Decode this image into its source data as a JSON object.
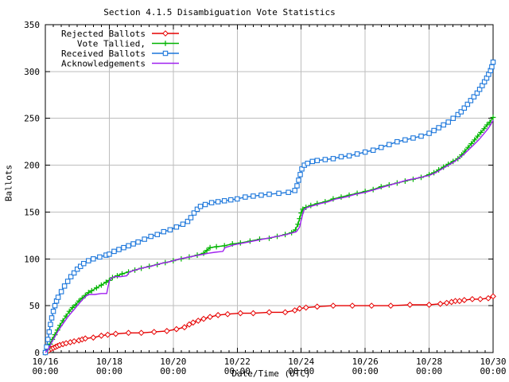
{
  "chart_data": {
    "type": "line",
    "title": "Section 4.1.5 Disambiguation Vote Statistics",
    "xlabel": "Date/Time (UTC)",
    "ylabel": "Ballots",
    "x_unit_note": "days since 10/16 00:00 UTC",
    "xlim": [
      0,
      14
    ],
    "ylim": [
      0,
      350
    ],
    "grid": true,
    "legend_position": "top-left",
    "x_ticks": [
      {
        "day": 0,
        "date": "10/16",
        "time": "00:00"
      },
      {
        "day": 2,
        "date": "10/18",
        "time": "00:00"
      },
      {
        "day": 4,
        "date": "10/20",
        "time": "00:00"
      },
      {
        "day": 6,
        "date": "10/22",
        "time": "00:00"
      },
      {
        "day": 8,
        "date": "10/24",
        "time": "00:00"
      },
      {
        "day": 10,
        "date": "10/26",
        "time": "00:00"
      },
      {
        "day": 12,
        "date": "10/28",
        "time": "00:00"
      },
      {
        "day": 14,
        "date": "10/30",
        "time": "00:00"
      }
    ],
    "y_ticks": [
      0,
      50,
      100,
      150,
      200,
      250,
      300,
      350
    ],
    "x_minor_interval": 0.25,
    "grid_color": "#bdbdbd",
    "series": [
      {
        "name": "Rejected Ballots",
        "color": "#e60000",
        "marker": "diamond",
        "points": [
          [
            0,
            0
          ],
          [
            0.1,
            2
          ],
          [
            0.18,
            4
          ],
          [
            0.25,
            5
          ],
          [
            0.32,
            6
          ],
          [
            0.38,
            7
          ],
          [
            0.45,
            8
          ],
          [
            0.55,
            9
          ],
          [
            0.65,
            10
          ],
          [
            0.78,
            11
          ],
          [
            0.9,
            12
          ],
          [
            1.05,
            13
          ],
          [
            1.15,
            14
          ],
          [
            1.25,
            15
          ],
          [
            1.5,
            16
          ],
          [
            1.75,
            18
          ],
          [
            1.95,
            19
          ],
          [
            2.2,
            20
          ],
          [
            2.6,
            21
          ],
          [
            3,
            21
          ],
          [
            3.4,
            22
          ],
          [
            3.8,
            23
          ],
          [
            4.1,
            25
          ],
          [
            4.35,
            27
          ],
          [
            4.5,
            30
          ],
          [
            4.62,
            32
          ],
          [
            4.78,
            34
          ],
          [
            4.95,
            36
          ],
          [
            5.15,
            38
          ],
          [
            5.4,
            40
          ],
          [
            5.7,
            41
          ],
          [
            6.1,
            42
          ],
          [
            6.5,
            42
          ],
          [
            7,
            43
          ],
          [
            7.5,
            43
          ],
          [
            7.8,
            45
          ],
          [
            7.95,
            47
          ],
          [
            8.15,
            48
          ],
          [
            8.5,
            49
          ],
          [
            9,
            50
          ],
          [
            9.6,
            50
          ],
          [
            10.2,
            50
          ],
          [
            10.8,
            50
          ],
          [
            11.4,
            51
          ],
          [
            12,
            51
          ],
          [
            12.35,
            52
          ],
          [
            12.55,
            53
          ],
          [
            12.7,
            54
          ],
          [
            12.82,
            55
          ],
          [
            12.95,
            55
          ],
          [
            13.1,
            56
          ],
          [
            13.35,
            57
          ],
          [
            13.6,
            57
          ],
          [
            13.85,
            58
          ],
          [
            14,
            60
          ]
        ]
      },
      {
        "name": "Vote Tallied,",
        "color": "#00b400",
        "marker": "plus",
        "points": [
          [
            0,
            0
          ],
          [
            0.08,
            4
          ],
          [
            0.15,
            9
          ],
          [
            0.22,
            14
          ],
          [
            0.3,
            19
          ],
          [
            0.38,
            24
          ],
          [
            0.46,
            29
          ],
          [
            0.55,
            34
          ],
          [
            0.65,
            39
          ],
          [
            0.75,
            44
          ],
          [
            0.85,
            48
          ],
          [
            0.95,
            51
          ],
          [
            1.05,
            55
          ],
          [
            1.15,
            58
          ],
          [
            1.25,
            61
          ],
          [
            1.35,
            64
          ],
          [
            1.45,
            66
          ],
          [
            1.6,
            69
          ],
          [
            1.75,
            72
          ],
          [
            1.9,
            75
          ],
          [
            2,
            77
          ],
          [
            2.1,
            80
          ],
          [
            2.25,
            82
          ],
          [
            2.4,
            84
          ],
          [
            2.6,
            86
          ],
          [
            2.8,
            88
          ],
          [
            3,
            90
          ],
          [
            3.25,
            92
          ],
          [
            3.5,
            94
          ],
          [
            3.75,
            96
          ],
          [
            4,
            98
          ],
          [
            4.25,
            100
          ],
          [
            4.5,
            102
          ],
          [
            4.75,
            104
          ],
          [
            4.95,
            106
          ],
          [
            5.05,
            109
          ],
          [
            5.15,
            112
          ],
          [
            5.35,
            113
          ],
          [
            5.6,
            114
          ],
          [
            5.85,
            116
          ],
          [
            6.1,
            117
          ],
          [
            6.4,
            119
          ],
          [
            6.7,
            121
          ],
          [
            7,
            122
          ],
          [
            7.25,
            124
          ],
          [
            7.5,
            126
          ],
          [
            7.7,
            128
          ],
          [
            7.82,
            131
          ],
          [
            7.9,
            137
          ],
          [
            7.95,
            143
          ],
          [
            8,
            149
          ],
          [
            8.05,
            153
          ],
          [
            8.15,
            155
          ],
          [
            8.3,
            157
          ],
          [
            8.5,
            159
          ],
          [
            8.75,
            161
          ],
          [
            9,
            164
          ],
          [
            9.25,
            166
          ],
          [
            9.5,
            168
          ],
          [
            9.75,
            170
          ],
          [
            10,
            172
          ],
          [
            10.25,
            174
          ],
          [
            10.5,
            177
          ],
          [
            10.75,
            179
          ],
          [
            11,
            181
          ],
          [
            11.25,
            183
          ],
          [
            11.5,
            185
          ],
          [
            11.75,
            187
          ],
          [
            12,
            190
          ],
          [
            12.15,
            192
          ],
          [
            12.3,
            195
          ],
          [
            12.45,
            198
          ],
          [
            12.6,
            201
          ],
          [
            12.75,
            204
          ],
          [
            12.9,
            207
          ],
          [
            13.02,
            211
          ],
          [
            13.12,
            215
          ],
          [
            13.22,
            219
          ],
          [
            13.32,
            223
          ],
          [
            13.42,
            227
          ],
          [
            13.52,
            231
          ],
          [
            13.62,
            235
          ],
          [
            13.72,
            239
          ],
          [
            13.81,
            243
          ],
          [
            13.9,
            246
          ],
          [
            14,
            251
          ]
        ]
      },
      {
        "name": "Received Ballots",
        "color": "#1b76db",
        "marker": "square",
        "points": [
          [
            0,
            0
          ],
          [
            0.04,
            6
          ],
          [
            0.08,
            14
          ],
          [
            0.12,
            22
          ],
          [
            0.16,
            30
          ],
          [
            0.2,
            37
          ],
          [
            0.25,
            44
          ],
          [
            0.3,
            50
          ],
          [
            0.35,
            55
          ],
          [
            0.4,
            59
          ],
          [
            0.5,
            65
          ],
          [
            0.6,
            71
          ],
          [
            0.7,
            76
          ],
          [
            0.8,
            81
          ],
          [
            0.9,
            85
          ],
          [
            1,
            89
          ],
          [
            1.1,
            92
          ],
          [
            1.2,
            95
          ],
          [
            1.35,
            98
          ],
          [
            1.5,
            100
          ],
          [
            1.7,
            102
          ],
          [
            1.9,
            104
          ],
          [
            2,
            105
          ],
          [
            2.15,
            108
          ],
          [
            2.3,
            110
          ],
          [
            2.45,
            112
          ],
          [
            2.6,
            114
          ],
          [
            2.75,
            116
          ],
          [
            2.9,
            118
          ],
          [
            3.1,
            121
          ],
          [
            3.3,
            124
          ],
          [
            3.5,
            126
          ],
          [
            3.7,
            129
          ],
          [
            3.9,
            131
          ],
          [
            4.1,
            134
          ],
          [
            4.3,
            137
          ],
          [
            4.45,
            140
          ],
          [
            4.55,
            144
          ],
          [
            4.65,
            149
          ],
          [
            4.75,
            153
          ],
          [
            4.85,
            156
          ],
          [
            5,
            158
          ],
          [
            5.2,
            160
          ],
          [
            5.4,
            161
          ],
          [
            5.6,
            162
          ],
          [
            5.8,
            163
          ],
          [
            6,
            164
          ],
          [
            6.25,
            166
          ],
          [
            6.5,
            167
          ],
          [
            6.75,
            168
          ],
          [
            7,
            169
          ],
          [
            7.3,
            170
          ],
          [
            7.6,
            171
          ],
          [
            7.8,
            173
          ],
          [
            7.87,
            178
          ],
          [
            7.92,
            184
          ],
          [
            7.97,
            190
          ],
          [
            8.02,
            196
          ],
          [
            8.1,
            200
          ],
          [
            8.2,
            202
          ],
          [
            8.35,
            204
          ],
          [
            8.5,
            205
          ],
          [
            8.75,
            206
          ],
          [
            9,
            207
          ],
          [
            9.25,
            209
          ],
          [
            9.5,
            210
          ],
          [
            9.75,
            212
          ],
          [
            10,
            214
          ],
          [
            10.25,
            216
          ],
          [
            10.5,
            219
          ],
          [
            10.75,
            222
          ],
          [
            11,
            225
          ],
          [
            11.25,
            227
          ],
          [
            11.5,
            229
          ],
          [
            11.75,
            231
          ],
          [
            12,
            234
          ],
          [
            12.15,
            237
          ],
          [
            12.3,
            240
          ],
          [
            12.45,
            243
          ],
          [
            12.6,
            246
          ],
          [
            12.75,
            250
          ],
          [
            12.9,
            254
          ],
          [
            13,
            257
          ],
          [
            13.1,
            261
          ],
          [
            13.2,
            265
          ],
          [
            13.3,
            269
          ],
          [
            13.4,
            273
          ],
          [
            13.5,
            277
          ],
          [
            13.58,
            281
          ],
          [
            13.66,
            285
          ],
          [
            13.73,
            289
          ],
          [
            13.8,
            293
          ],
          [
            13.86,
            297
          ],
          [
            13.92,
            301
          ],
          [
            13.96,
            305
          ],
          [
            14,
            310
          ]
        ]
      },
      {
        "name": "Acknowledgements",
        "color": "#a020f0",
        "marker": "none",
        "points": [
          [
            0,
            0
          ],
          [
            0.1,
            4
          ],
          [
            0.2,
            11
          ],
          [
            0.3,
            17
          ],
          [
            0.4,
            23
          ],
          [
            0.5,
            28
          ],
          [
            0.6,
            33
          ],
          [
            0.7,
            38
          ],
          [
            0.8,
            42
          ],
          [
            0.9,
            46
          ],
          [
            1,
            50
          ],
          [
            1.1,
            54
          ],
          [
            1.2,
            58
          ],
          [
            1.3,
            61
          ],
          [
            1.38,
            62
          ],
          [
            1.55,
            62
          ],
          [
            1.75,
            63
          ],
          [
            1.92,
            63
          ],
          [
            1.96,
            70
          ],
          [
            2,
            76
          ],
          [
            2.05,
            79
          ],
          [
            2.15,
            81
          ],
          [
            2.35,
            81
          ],
          [
            2.55,
            82
          ],
          [
            2.62,
            86
          ],
          [
            2.8,
            88
          ],
          [
            3,
            90
          ],
          [
            3.3,
            92
          ],
          [
            3.6,
            95
          ],
          [
            3.9,
            97
          ],
          [
            4.2,
            100
          ],
          [
            4.5,
            102
          ],
          [
            4.8,
            104
          ],
          [
            5.1,
            106
          ],
          [
            5.3,
            107
          ],
          [
            5.55,
            108
          ],
          [
            5.62,
            112
          ],
          [
            5.9,
            115
          ],
          [
            6.2,
            117
          ],
          [
            6.5,
            119
          ],
          [
            6.8,
            121
          ],
          [
            7.1,
            123
          ],
          [
            7.4,
            125
          ],
          [
            7.65,
            127
          ],
          [
            7.85,
            129
          ],
          [
            7.95,
            134
          ],
          [
            8,
            141
          ],
          [
            8.05,
            148
          ],
          [
            8.1,
            153
          ],
          [
            8.2,
            155
          ],
          [
            8.4,
            157
          ],
          [
            8.6,
            159
          ],
          [
            8.85,
            161
          ],
          [
            9.1,
            164
          ],
          [
            9.4,
            166
          ],
          [
            9.7,
            169
          ],
          [
            10,
            171
          ],
          [
            10.3,
            174
          ],
          [
            10.6,
            177
          ],
          [
            11,
            181
          ],
          [
            11.3,
            184
          ],
          [
            11.6,
            186
          ],
          [
            12,
            189
          ],
          [
            12.2,
            192
          ],
          [
            12.4,
            196
          ],
          [
            12.6,
            200
          ],
          [
            12.8,
            204
          ],
          [
            12.95,
            208
          ],
          [
            13.1,
            212
          ],
          [
            13.25,
            217
          ],
          [
            13.4,
            222
          ],
          [
            13.55,
            227
          ],
          [
            13.7,
            233
          ],
          [
            13.82,
            238
          ],
          [
            13.92,
            243
          ],
          [
            14,
            248
          ]
        ]
      }
    ]
  }
}
